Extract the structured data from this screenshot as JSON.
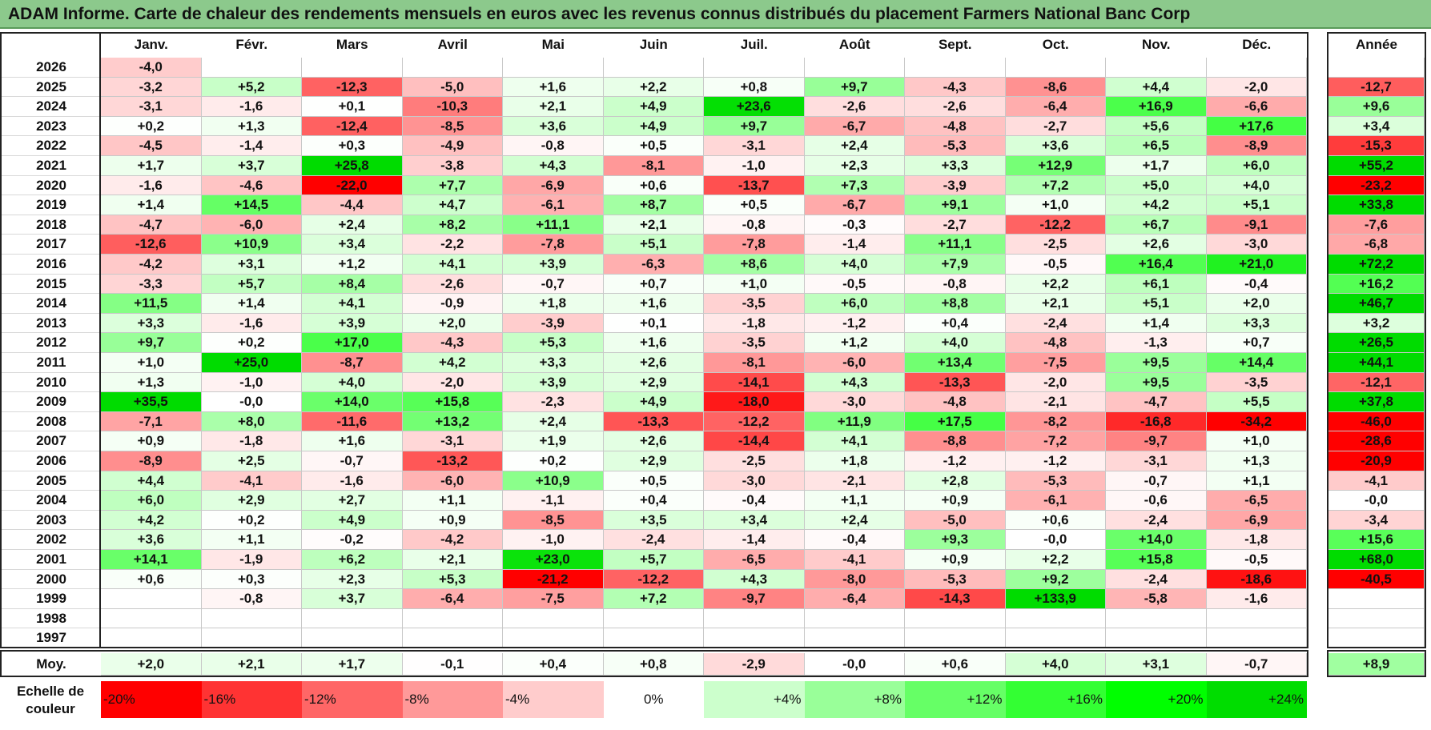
{
  "title": "ADAM Informe. Carte de chaleur des rendements mensuels en euros avec les revenus connus distribués du placement Farmers National Banc Corp",
  "chart_data": {
    "type": "heatmap",
    "columns": [
      "Janv.",
      "Févr.",
      "Mars",
      "Avril",
      "Mai",
      "Juin",
      "Juil.",
      "Août",
      "Sept.",
      "Oct.",
      "Nov.",
      "Déc."
    ],
    "annual_header": "Année",
    "rows": [
      {
        "year": "2026",
        "months": [
          "-4,0",
          "",
          "",
          "",
          "",
          "",
          "",
          "",
          "",
          "",
          "",
          ""
        ],
        "annual": ""
      },
      {
        "year": "2025",
        "months": [
          "-3,2",
          "+5,2",
          "-12,3",
          "-5,0",
          "+1,6",
          "+2,2",
          "+0,8",
          "+9,7",
          "-4,3",
          "-8,6",
          "+4,4",
          "-2,0"
        ],
        "annual": "-12,7"
      },
      {
        "year": "2024",
        "months": [
          "-3,1",
          "-1,6",
          "+0,1",
          "-10,3",
          "+2,1",
          "+4,9",
          "+23,6",
          "-2,6",
          "-2,6",
          "-6,4",
          "+16,9",
          "-6,6"
        ],
        "annual": "+9,6"
      },
      {
        "year": "2023",
        "months": [
          "+0,2",
          "+1,3",
          "-12,4",
          "-8,5",
          "+3,6",
          "+4,9",
          "+9,7",
          "-6,7",
          "-4,8",
          "-2,7",
          "+5,6",
          "+17,6"
        ],
        "annual": "+3,4"
      },
      {
        "year": "2022",
        "months": [
          "-4,5",
          "-1,4",
          "+0,3",
          "-4,9",
          "-0,8",
          "+0,5",
          "-3,1",
          "+2,4",
          "-5,3",
          "+3,6",
          "+6,5",
          "-8,9"
        ],
        "annual": "-15,3"
      },
      {
        "year": "2021",
        "months": [
          "+1,7",
          "+3,7",
          "+25,8",
          "-3,8",
          "+4,3",
          "-8,1",
          "-1,0",
          "+2,3",
          "+3,3",
          "+12,9",
          "+1,7",
          "+6,0"
        ],
        "annual": "+55,2"
      },
      {
        "year": "2020",
        "months": [
          "-1,6",
          "-4,6",
          "-22,0",
          "+7,7",
          "-6,9",
          "+0,6",
          "-13,7",
          "+7,3",
          "-3,9",
          "+7,2",
          "+5,0",
          "+4,0"
        ],
        "annual": "-23,2"
      },
      {
        "year": "2019",
        "months": [
          "+1,4",
          "+14,5",
          "-4,4",
          "+4,7",
          "-6,1",
          "+8,7",
          "+0,5",
          "-6,7",
          "+9,1",
          "+1,0",
          "+4,2",
          "+5,1"
        ],
        "annual": "+33,8"
      },
      {
        "year": "2018",
        "months": [
          "-4,7",
          "-6,0",
          "+2,4",
          "+8,2",
          "+11,1",
          "+2,1",
          "-0,8",
          "-0,3",
          "-2,7",
          "-12,2",
          "+6,7",
          "-9,1"
        ],
        "annual": "-7,6"
      },
      {
        "year": "2017",
        "months": [
          "-12,6",
          "+10,9",
          "+3,4",
          "-2,2",
          "-7,8",
          "+5,1",
          "-7,8",
          "-1,4",
          "+11,1",
          "-2,5",
          "+2,6",
          "-3,0"
        ],
        "annual": "-6,8"
      },
      {
        "year": "2016",
        "months": [
          "-4,2",
          "+3,1",
          "+1,2",
          "+4,1",
          "+3,9",
          "-6,3",
          "+8,6",
          "+4,0",
          "+7,9",
          "-0,5",
          "+16,4",
          "+21,0"
        ],
        "annual": "+72,2"
      },
      {
        "year": "2015",
        "months": [
          "-3,3",
          "+5,7",
          "+8,4",
          "-2,6",
          "-0,7",
          "+0,7",
          "+1,0",
          "-0,5",
          "-0,8",
          "+2,2",
          "+6,1",
          "-0,4"
        ],
        "annual": "+16,2"
      },
      {
        "year": "2014",
        "months": [
          "+11,5",
          "+1,4",
          "+4,1",
          "-0,9",
          "+1,8",
          "+1,6",
          "-3,5",
          "+6,0",
          "+8,8",
          "+2,1",
          "+5,1",
          "+2,0"
        ],
        "annual": "+46,7"
      },
      {
        "year": "2013",
        "months": [
          "+3,3",
          "-1,6",
          "+3,9",
          "+2,0",
          "-3,9",
          "+0,1",
          "-1,8",
          "-1,2",
          "+0,4",
          "-2,4",
          "+1,4",
          "+3,3"
        ],
        "annual": "+3,2"
      },
      {
        "year": "2012",
        "months": [
          "+9,7",
          "+0,2",
          "+17,0",
          "-4,3",
          "+5,3",
          "+1,6",
          "-3,5",
          "+1,2",
          "+4,0",
          "-4,8",
          "-1,3",
          "+0,7"
        ],
        "annual": "+26,5"
      },
      {
        "year": "2011",
        "months": [
          "+1,0",
          "+25,0",
          "-8,7",
          "+4,2",
          "+3,3",
          "+2,6",
          "-8,1",
          "-6,0",
          "+13,4",
          "-7,5",
          "+9,5",
          "+14,4"
        ],
        "annual": "+44,1"
      },
      {
        "year": "2010",
        "months": [
          "+1,3",
          "-1,0",
          "+4,0",
          "-2,0",
          "+3,9",
          "+2,9",
          "-14,1",
          "+4,3",
          "-13,3",
          "-2,0",
          "+9,5",
          "-3,5"
        ],
        "annual": "-12,1"
      },
      {
        "year": "2009",
        "months": [
          "+35,5",
          "-0,0",
          "+14,0",
          "+15,8",
          "-2,3",
          "+4,9",
          "-18,0",
          "-3,0",
          "-4,8",
          "-2,1",
          "-4,7",
          "+5,5"
        ],
        "annual": "+37,8"
      },
      {
        "year": "2008",
        "months": [
          "-7,1",
          "+8,0",
          "-11,6",
          "+13,2",
          "+2,4",
          "-13,3",
          "-12,2",
          "+11,9",
          "+17,5",
          "-8,2",
          "-16,8",
          "-34,2"
        ],
        "annual": "-46,0"
      },
      {
        "year": "2007",
        "months": [
          "+0,9",
          "-1,8",
          "+1,6",
          "-3,1",
          "+1,9",
          "+2,6",
          "-14,4",
          "+4,1",
          "-8,8",
          "-7,2",
          "-9,7",
          "+1,0"
        ],
        "annual": "-28,6"
      },
      {
        "year": "2006",
        "months": [
          "-8,9",
          "+2,5",
          "-0,7",
          "-13,2",
          "+0,2",
          "+2,9",
          "-2,5",
          "+1,8",
          "-1,2",
          "-1,2",
          "-3,1",
          "+1,3"
        ],
        "annual": "-20,9"
      },
      {
        "year": "2005",
        "months": [
          "+4,4",
          "-4,1",
          "-1,6",
          "-6,0",
          "+10,9",
          "+0,5",
          "-3,0",
          "-2,1",
          "+2,8",
          "-5,3",
          "-0,7",
          "+1,1"
        ],
        "annual": "-4,1"
      },
      {
        "year": "2004",
        "months": [
          "+6,0",
          "+2,9",
          "+2,7",
          "+1,1",
          "-1,1",
          "+0,4",
          "-0,4",
          "+1,1",
          "+0,9",
          "-6,1",
          "-0,6",
          "-6,5"
        ],
        "annual": "-0,0"
      },
      {
        "year": "2003",
        "months": [
          "+4,2",
          "+0,2",
          "+4,9",
          "+0,9",
          "-8,5",
          "+3,5",
          "+3,4",
          "+2,4",
          "-5,0",
          "+0,6",
          "-2,4",
          "-6,9"
        ],
        "annual": "-3,4"
      },
      {
        "year": "2002",
        "months": [
          "+3,6",
          "+1,1",
          "-0,2",
          "-4,2",
          "-1,0",
          "-2,4",
          "-1,4",
          "-0,4",
          "+9,3",
          "-0,0",
          "+14,0",
          "-1,8"
        ],
        "annual": "+15,6"
      },
      {
        "year": "2001",
        "months": [
          "+14,1",
          "-1,9",
          "+6,2",
          "+2,1",
          "+23,0",
          "+5,7",
          "-6,5",
          "-4,1",
          "+0,9",
          "+2,2",
          "+15,8",
          "-0,5"
        ],
        "annual": "+68,0"
      },
      {
        "year": "2000",
        "months": [
          "+0,6",
          "+0,3",
          "+2,3",
          "+5,3",
          "-21,2",
          "-12,2",
          "+4,3",
          "-8,0",
          "-5,3",
          "+9,2",
          "-2,4",
          "-18,6"
        ],
        "annual": "-40,5"
      },
      {
        "year": "1999",
        "months": [
          "",
          "-0,8",
          "+3,7",
          "-6,4",
          "-7,5",
          "+7,2",
          "-9,7",
          "-6,4",
          "-14,3",
          "+133,9",
          "-5,8",
          "-1,6"
        ],
        "annual": ""
      },
      {
        "year": "1998",
        "months": [
          "",
          "",
          "",
          "",
          "",
          "",
          "",
          "",
          "",
          "",
          "",
          ""
        ],
        "annual": ""
      },
      {
        "year": "1997",
        "months": [
          "",
          "",
          "",
          "",
          "",
          "",
          "",
          "",
          "",
          "",
          "",
          ""
        ],
        "annual": ""
      }
    ],
    "average": {
      "label": "Moy.",
      "months": [
        "+2,0",
        "+2,1",
        "+1,7",
        "-0,1",
        "+0,4",
        "+0,8",
        "-2,9",
        "-0,0",
        "+0,6",
        "+4,0",
        "+3,1",
        "-0,7"
      ],
      "annual": "+8,9"
    },
    "scale": {
      "label_line1": "Echelle de",
      "label_line2": "couleur",
      "steps": [
        {
          "label": "-20%",
          "value": -20,
          "color": "#ff0000"
        },
        {
          "label": "-16%",
          "value": -16,
          "color": "#ff3333"
        },
        {
          "label": "-12%",
          "value": -12,
          "color": "#ff6666"
        },
        {
          "label": "-8%",
          "value": -8,
          "color": "#ff9999"
        },
        {
          "label": "-4%",
          "value": -4,
          "color": "#ffcccc"
        },
        {
          "label": "0%",
          "value": 0,
          "color": "#ffffff"
        },
        {
          "label": "+4%",
          "value": 4,
          "color": "#ccffcc"
        },
        {
          "label": "+8%",
          "value": 8,
          "color": "#99ff99"
        },
        {
          "label": "+12%",
          "value": 12,
          "color": "#66ff66"
        },
        {
          "label": "+16%",
          "value": 16,
          "color": "#33ff33"
        },
        {
          "label": "+20%",
          "value": 20,
          "color": "#00ff00"
        },
        {
          "label": "+24%",
          "value": 24,
          "color": "#00dd00"
        }
      ]
    }
  }
}
